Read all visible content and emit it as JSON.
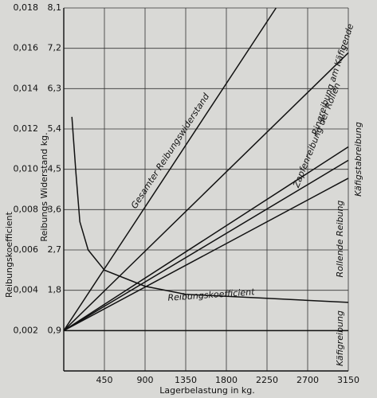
{
  "chart_data": {
    "type": "line",
    "xlabel": "Lagerbelastung in kg.",
    "ylabel": "Reibungskoefficient",
    "y2label": "Reibungs Widerstand kg.",
    "xlim": [
      0,
      3150
    ],
    "xticks": [
      450,
      900,
      1350,
      1800,
      2250,
      2700,
      3150
    ],
    "ylim": [
      0,
      0.018
    ],
    "yticks": [
      {
        "value": 0.002,
        "label": "0,002"
      },
      {
        "value": 0.004,
        "label": "0,004"
      },
      {
        "value": 0.006,
        "label": "0,006"
      },
      {
        "value": 0.008,
        "label": "0,008"
      },
      {
        "value": 0.01,
        "label": "0,010"
      },
      {
        "value": 0.012,
        "label": "0,012"
      },
      {
        "value": 0.014,
        "label": "0,014"
      },
      {
        "value": 0.016,
        "label": "0,016"
      },
      {
        "value": 0.018,
        "label": "0,018"
      }
    ],
    "y2lim": [
      0,
      8.1
    ],
    "y2ticks": [
      {
        "value": 0.9,
        "label": "0,9"
      },
      {
        "value": 1.8,
        "label": "1,8"
      },
      {
        "value": 2.7,
        "label": "2,7"
      },
      {
        "value": 3.6,
        "label": "3,6"
      },
      {
        "value": 4.5,
        "label": "4,5"
      },
      {
        "value": 5.4,
        "label": "5,4"
      },
      {
        "value": 6.3,
        "label": "6,3"
      },
      {
        "value": 7.2,
        "label": "7,2"
      },
      {
        "value": 8.1,
        "label": "8,1"
      }
    ],
    "grid": true,
    "series": [
      {
        "name": "Gesamter Reibungswiderstand",
        "color": "#111111",
        "axis": "y2",
        "x": [
          0,
          2350
        ],
        "values": [
          0.9,
          8.1
        ]
      },
      {
        "name": "Ringreibung am Käfigende",
        "color": "#111111",
        "axis": "y2",
        "x": [
          0,
          3150
        ],
        "values": [
          0.9,
          7.1
        ]
      },
      {
        "name": "Zapfenreibung der Rollen",
        "color": "#111111",
        "axis": "y2",
        "x": [
          0,
          3150
        ],
        "values": [
          0.9,
          5.0
        ]
      },
      {
        "name": "Käfigstabreibung",
        "color": "#111111",
        "axis": "y2",
        "x": [
          0,
          3150
        ],
        "values": [
          0.9,
          4.7
        ]
      },
      {
        "name": "Rollende Reibung",
        "color": "#111111",
        "axis": "y2",
        "x": [
          0,
          3150
        ],
        "values": [
          0.9,
          4.3
        ]
      },
      {
        "name": "Käfigreibung",
        "color": "#111111",
        "axis": "y2",
        "x": [
          0,
          3150
        ],
        "values": [
          0.9,
          0.9
        ]
      },
      {
        "name": "Reibungskoefficient",
        "color": "#111111",
        "x": [
          90,
          135,
          178,
          270,
          450,
          900,
          1350,
          1800,
          2250,
          2700,
          3150
        ],
        "values": [
          0.0126,
          0.0098,
          0.0074,
          0.006,
          0.005,
          0.0042,
          0.0038,
          0.0037,
          0.0036,
          0.0035,
          0.0034
        ]
      }
    ]
  }
}
